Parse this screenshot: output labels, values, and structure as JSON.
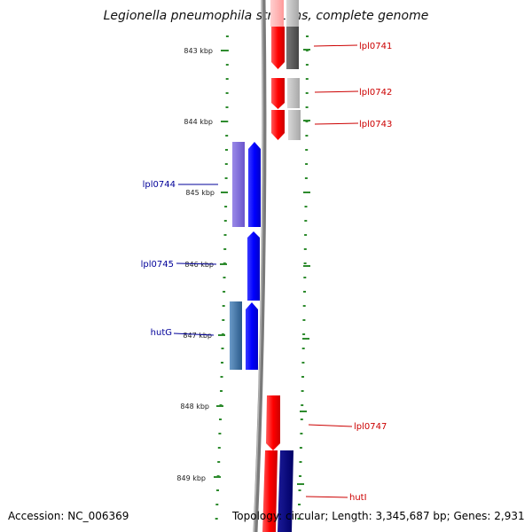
{
  "title": "Legionella pneumophila str. Lens, complete genome",
  "accession": "Accession: NC_006369",
  "summary": "Topology: circular; Length: 3,345,687 bp; Genes: 2,931",
  "colors": {
    "backbone": "#888888",
    "scale": "#2e8b2e",
    "forward_gene": "#ff0000",
    "reverse_gene": "#0000ff",
    "forward_label": "#cc0000",
    "reverse_label": "#000099"
  },
  "scale_ticks": [
    "843 kbp",
    "844 kbp",
    "845 kbp",
    "846 kbp",
    "847 kbp",
    "848 kbp",
    "849 kbp"
  ],
  "genes": [
    {
      "name": "lpl0741",
      "strand": "forward",
      "label": "lpl0741"
    },
    {
      "name": "lpl0742",
      "strand": "forward",
      "label": "lpl0742"
    },
    {
      "name": "lpl0743",
      "strand": "forward",
      "label": "lpl0743"
    },
    {
      "name": "lpl0744",
      "strand": "reverse",
      "label": "lpl0744"
    },
    {
      "name": "lpl0745",
      "strand": "reverse",
      "label": "lpl0745"
    },
    {
      "name": "hutG",
      "strand": "reverse",
      "label": "hutG"
    },
    {
      "name": "lpl0747",
      "strand": "forward",
      "label": "lpl0747"
    },
    {
      "name": "hutI",
      "strand": "forward",
      "label": "hutI"
    }
  ]
}
